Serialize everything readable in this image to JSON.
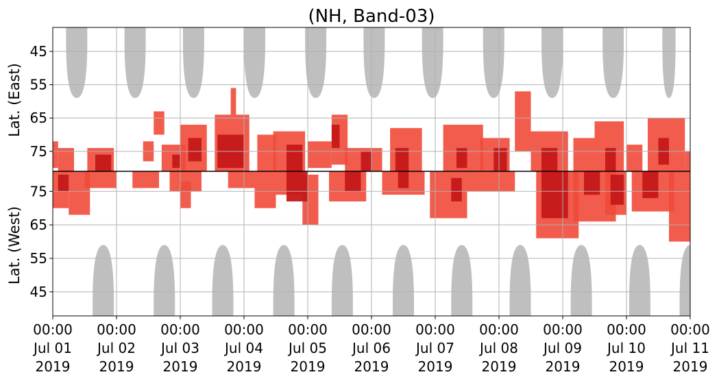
{
  "chart_data": {
    "type": "heatmap",
    "title": "(NH, Band-03)",
    "ylabel_top": "Lat. (East)",
    "ylabel_bottom": "Lat. (West)",
    "y_ticks_east": [
      "45",
      "55",
      "65",
      "75"
    ],
    "y_ticks_west": [
      "75",
      "65",
      "55",
      "45"
    ],
    "x_ticks": [
      {
        "time": "00:00",
        "date": "Jul 01",
        "year": "2019"
      },
      {
        "time": "00:00",
        "date": "Jul 02",
        "year": "2019"
      },
      {
        "time": "00:00",
        "date": "Jul 03",
        "year": "2019"
      },
      {
        "time": "00:00",
        "date": "Jul 04",
        "year": "2019"
      },
      {
        "time": "00:00",
        "date": "Jul 05",
        "year": "2019"
      },
      {
        "time": "00:00",
        "date": "Jul 06",
        "year": "2019"
      },
      {
        "time": "00:00",
        "date": "Jul 07",
        "year": "2019"
      },
      {
        "time": "00:00",
        "date": "Jul 08",
        "year": "2019"
      },
      {
        "time": "00:00",
        "date": "Jul 09",
        "year": "2019"
      },
      {
        "time": "00:00",
        "date": "Jul 10",
        "year": "2019"
      },
      {
        "time": "00:00",
        "date": "Jul 11",
        "year": "2019"
      }
    ],
    "x_range": [
      "2019-07-01 00:00",
      "2019-07-11 00:00"
    ],
    "grid": true,
    "colors": {
      "no_coverage": "#bfbfbf",
      "light": "#f04a3a",
      "dark": "#c41818",
      "divider": "#000000"
    },
    "no_coverage_east": [
      {
        "center": "2019-07-01 09:00",
        "half_width_h": 4.0,
        "min_lat": 59
      },
      {
        "center": "2019-07-02 07:00",
        "half_width_h": 4.0,
        "min_lat": 59
      },
      {
        "center": "2019-07-03 05:00",
        "half_width_h": 4.0,
        "min_lat": 59
      },
      {
        "center": "2019-07-04 04:00",
        "half_width_h": 4.0,
        "min_lat": 59
      },
      {
        "center": "2019-07-05 03:00",
        "half_width_h": 4.0,
        "min_lat": 59
      },
      {
        "center": "2019-07-06 01:00",
        "half_width_h": 4.0,
        "min_lat": 59
      },
      {
        "center": "2019-07-06 23:00",
        "half_width_h": 4.0,
        "min_lat": 59
      },
      {
        "center": "2019-07-07 22:00",
        "half_width_h": 4.0,
        "min_lat": 59
      },
      {
        "center": "2019-07-08 20:00",
        "half_width_h": 4.0,
        "min_lat": 59
      },
      {
        "center": "2019-07-09 19:00",
        "half_width_h": 4.0,
        "min_lat": 59
      },
      {
        "center": "2019-07-10 16:00",
        "half_width_h": 2.5,
        "min_lat": 59
      }
    ],
    "no_coverage_west": [
      {
        "center": "2019-07-01 19:00",
        "half_width_h": 4.0,
        "min_lat": 59
      },
      {
        "center": "2019-07-02 18:00",
        "half_width_h": 4.0,
        "min_lat": 59
      },
      {
        "center": "2019-07-03 16:00",
        "half_width_h": 4.0,
        "min_lat": 59
      },
      {
        "center": "2019-07-04 15:00",
        "half_width_h": 4.0,
        "min_lat": 59
      },
      {
        "center": "2019-07-05 13:00",
        "half_width_h": 4.0,
        "min_lat": 59
      },
      {
        "center": "2019-07-06 12:00",
        "half_width_h": 4.0,
        "min_lat": 59
      },
      {
        "center": "2019-07-07 10:00",
        "half_width_h": 4.0,
        "min_lat": 59
      },
      {
        "center": "2019-07-08 08:00",
        "half_width_h": 4.0,
        "min_lat": 59
      },
      {
        "center": "2019-07-09 07:00",
        "half_width_h": 4.0,
        "min_lat": 59
      },
      {
        "center": "2019-07-10 05:00",
        "half_width_h": 4.0,
        "min_lat": 59
      },
      {
        "center": "2019-07-11 00:00",
        "half_width_h": 4.0,
        "min_lat": 59
      }
    ],
    "activity_east": [
      {
        "t0": "2019-07-01 00:00",
        "t1": "2019-07-01 02:00",
        "lat_min": 72,
        "lat_max": 80,
        "level": "light"
      },
      {
        "t0": "2019-07-01 02:00",
        "t1": "2019-07-01 08:00",
        "lat_min": 74,
        "lat_max": 81,
        "level": "light"
      },
      {
        "t0": "2019-07-01 13:00",
        "t1": "2019-07-01 23:00",
        "lat_min": 74,
        "lat_max": 81,
        "level": "light"
      },
      {
        "t0": "2019-07-01 16:00",
        "t1": "2019-07-01 22:00",
        "lat_min": 76,
        "lat_max": 81,
        "level": "dark"
      },
      {
        "t0": "2019-07-02 10:00",
        "t1": "2019-07-02 14:00",
        "lat_min": 72,
        "lat_max": 78,
        "level": "light"
      },
      {
        "t0": "2019-07-02 14:00",
        "t1": "2019-07-02 18:00",
        "lat_min": 63,
        "lat_max": 70,
        "level": "light"
      },
      {
        "t0": "2019-07-02 17:00",
        "t1": "2019-07-03 02:00",
        "lat_min": 73,
        "lat_max": 81,
        "level": "light"
      },
      {
        "t0": "2019-07-02 21:00",
        "t1": "2019-07-03 00:00",
        "lat_min": 76,
        "lat_max": 80,
        "level": "dark"
      },
      {
        "t0": "2019-07-03 00:00",
        "t1": "2019-07-03 10:00",
        "lat_min": 67,
        "lat_max": 81,
        "level": "light"
      },
      {
        "t0": "2019-07-03 03:00",
        "t1": "2019-07-03 08:00",
        "lat_min": 71,
        "lat_max": 78,
        "level": "dark"
      },
      {
        "t0": "2019-07-03 13:00",
        "t1": "2019-07-04 02:00",
        "lat_min": 64,
        "lat_max": 81,
        "level": "light"
      },
      {
        "t0": "2019-07-03 14:00",
        "t1": "2019-07-04 00:00",
        "lat_min": 70,
        "lat_max": 80,
        "level": "dark"
      },
      {
        "t0": "2019-07-03 19:00",
        "t1": "2019-07-03 21:00",
        "lat_min": 56,
        "lat_max": 64,
        "level": "light"
      },
      {
        "t0": "2019-07-04 05:00",
        "t1": "2019-07-04 12:00",
        "lat_min": 70,
        "lat_max": 81,
        "level": "light"
      },
      {
        "t0": "2019-07-04 11:00",
        "t1": "2019-07-04 23:00",
        "lat_min": 69,
        "lat_max": 81,
        "level": "light"
      },
      {
        "t0": "2019-07-04 16:00",
        "t1": "2019-07-04 22:00",
        "lat_min": 73,
        "lat_max": 81,
        "level": "dark"
      },
      {
        "t0": "2019-07-05 00:00",
        "t1": "2019-07-05 09:00",
        "lat_min": 72,
        "lat_max": 80,
        "level": "light"
      },
      {
        "t0": "2019-07-05 09:00",
        "t1": "2019-07-05 15:00",
        "lat_min": 64,
        "lat_max": 79,
        "level": "light"
      },
      {
        "t0": "2019-07-05 09:00",
        "t1": "2019-07-05 12:00",
        "lat_min": 67,
        "lat_max": 74,
        "level": "dark"
      },
      {
        "t0": "2019-07-05 14:00",
        "t1": "2019-07-06 04:00",
        "lat_min": 74,
        "lat_max": 81,
        "level": "light"
      },
      {
        "t0": "2019-07-05 20:00",
        "t1": "2019-07-06 00:00",
        "lat_min": 75,
        "lat_max": 81,
        "level": "dark"
      },
      {
        "t0": "2019-07-06 07:00",
        "t1": "2019-07-06 19:00",
        "lat_min": 68,
        "lat_max": 81,
        "level": "light"
      },
      {
        "t0": "2019-07-06 09:00",
        "t1": "2019-07-06 14:00",
        "lat_min": 74,
        "lat_max": 81,
        "level": "dark"
      },
      {
        "t0": "2019-07-07 03:00",
        "t1": "2019-07-07 18:00",
        "lat_min": 67,
        "lat_max": 81,
        "level": "light"
      },
      {
        "t0": "2019-07-07 08:00",
        "t1": "2019-07-07 12:00",
        "lat_min": 74,
        "lat_max": 80,
        "level": "dark"
      },
      {
        "t0": "2019-07-07 17:00",
        "t1": "2019-07-08 04:00",
        "lat_min": 71,
        "lat_max": 81,
        "level": "light"
      },
      {
        "t0": "2019-07-07 22:00",
        "t1": "2019-07-08 03:00",
        "lat_min": 74,
        "lat_max": 81,
        "level": "dark"
      },
      {
        "t0": "2019-07-08 06:00",
        "t1": "2019-07-08 12:00",
        "lat_min": 57,
        "lat_max": 75,
        "level": "light"
      },
      {
        "t0": "2019-07-08 12:00",
        "t1": "2019-07-09 02:00",
        "lat_min": 69,
        "lat_max": 81,
        "level": "light"
      },
      {
        "t0": "2019-07-08 16:00",
        "t1": "2019-07-08 22:00",
        "lat_min": 74,
        "lat_max": 81,
        "level": "dark"
      },
      {
        "t0": "2019-07-09 04:00",
        "t1": "2019-07-09 12:00",
        "lat_min": 71,
        "lat_max": 81,
        "level": "light"
      },
      {
        "t0": "2019-07-09 12:00",
        "t1": "2019-07-09 23:00",
        "lat_min": 66,
        "lat_max": 81,
        "level": "light"
      },
      {
        "t0": "2019-07-09 16:00",
        "t1": "2019-07-09 20:00",
        "lat_min": 74,
        "lat_max": 81,
        "level": "dark"
      },
      {
        "t0": "2019-07-10 00:00",
        "t1": "2019-07-10 06:00",
        "lat_min": 73,
        "lat_max": 81,
        "level": "light"
      },
      {
        "t0": "2019-07-10 08:00",
        "t1": "2019-07-10 22:00",
        "lat_min": 65,
        "lat_max": 81,
        "level": "light"
      },
      {
        "t0": "2019-07-10 12:00",
        "t1": "2019-07-10 16:00",
        "lat_min": 71,
        "lat_max": 79,
        "level": "dark"
      },
      {
        "t0": "2019-07-10 22:00",
        "t1": "2019-07-11 00:00",
        "lat_min": 75,
        "lat_max": 81,
        "level": "light"
      }
    ],
    "activity_west": [
      {
        "t0": "2019-07-01 00:00",
        "t1": "2019-07-01 06:00",
        "lat_min": 70,
        "lat_max": 81,
        "level": "light"
      },
      {
        "t0": "2019-07-01 02:00",
        "t1": "2019-07-01 06:00",
        "lat_min": 75,
        "lat_max": 80,
        "level": "dark"
      },
      {
        "t0": "2019-07-01 06:00",
        "t1": "2019-07-01 14:00",
        "lat_min": 68,
        "lat_max": 81,
        "level": "light"
      },
      {
        "t0": "2019-07-01 12:00",
        "t1": "2019-07-02 00:00",
        "lat_min": 76,
        "lat_max": 81,
        "level": "light"
      },
      {
        "t0": "2019-07-02 06:00",
        "t1": "2019-07-02 16:00",
        "lat_min": 76,
        "lat_max": 81,
        "level": "light"
      },
      {
        "t0": "2019-07-02 20:00",
        "t1": "2019-07-03 08:00",
        "lat_min": 75,
        "lat_max": 81,
        "level": "light"
      },
      {
        "t0": "2019-07-03 00:00",
        "t1": "2019-07-03 04:00",
        "lat_min": 70,
        "lat_max": 78,
        "level": "light"
      },
      {
        "t0": "2019-07-03 18:00",
        "t1": "2019-07-04 04:00",
        "lat_min": 76,
        "lat_max": 81,
        "level": "light"
      },
      {
        "t0": "2019-07-04 04:00",
        "t1": "2019-07-04 12:00",
        "lat_min": 70,
        "lat_max": 81,
        "level": "light"
      },
      {
        "t0": "2019-07-04 12:00",
        "t1": "2019-07-04 22:00",
        "lat_min": 74,
        "lat_max": 81,
        "level": "light"
      },
      {
        "t0": "2019-07-04 16:00",
        "t1": "2019-07-05 00:00",
        "lat_min": 72,
        "lat_max": 81,
        "level": "dark"
      },
      {
        "t0": "2019-07-04 22:00",
        "t1": "2019-07-05 04:00",
        "lat_min": 65,
        "lat_max": 80,
        "level": "light"
      },
      {
        "t0": "2019-07-05 08:00",
        "t1": "2019-07-05 22:00",
        "lat_min": 72,
        "lat_max": 81,
        "level": "light"
      },
      {
        "t0": "2019-07-05 14:00",
        "t1": "2019-07-05 20:00",
        "lat_min": 75,
        "lat_max": 81,
        "level": "dark"
      },
      {
        "t0": "2019-07-06 04:00",
        "t1": "2019-07-06 20:00",
        "lat_min": 74,
        "lat_max": 81,
        "level": "light"
      },
      {
        "t0": "2019-07-06 10:00",
        "t1": "2019-07-06 14:00",
        "lat_min": 76,
        "lat_max": 81,
        "level": "dark"
      },
      {
        "t0": "2019-07-06 22:00",
        "t1": "2019-07-07 12:00",
        "lat_min": 67,
        "lat_max": 81,
        "level": "light"
      },
      {
        "t0": "2019-07-07 06:00",
        "t1": "2019-07-07 10:00",
        "lat_min": 72,
        "lat_max": 79,
        "level": "dark"
      },
      {
        "t0": "2019-07-07 12:00",
        "t1": "2019-07-08 06:00",
        "lat_min": 75,
        "lat_max": 81,
        "level": "light"
      },
      {
        "t0": "2019-07-08 14:00",
        "t1": "2019-07-09 06:00",
        "lat_min": 61,
        "lat_max": 81,
        "level": "light"
      },
      {
        "t0": "2019-07-08 16:00",
        "t1": "2019-07-09 02:00",
        "lat_min": 67,
        "lat_max": 81,
        "level": "dark"
      },
      {
        "t0": "2019-07-09 04:00",
        "t1": "2019-07-09 20:00",
        "lat_min": 66,
        "lat_max": 81,
        "level": "light"
      },
      {
        "t0": "2019-07-09 08:00",
        "t1": "2019-07-09 14:00",
        "lat_min": 74,
        "lat_max": 81,
        "level": "dark"
      },
      {
        "t0": "2019-07-09 16:00",
        "t1": "2019-07-10 00:00",
        "lat_min": 68,
        "lat_max": 81,
        "level": "light"
      },
      {
        "t0": "2019-07-09 18:00",
        "t1": "2019-07-09 23:00",
        "lat_min": 71,
        "lat_max": 80,
        "level": "dark"
      },
      {
        "t0": "2019-07-10 02:00",
        "t1": "2019-07-10 18:00",
        "lat_min": 69,
        "lat_max": 81,
        "level": "light"
      },
      {
        "t0": "2019-07-10 06:00",
        "t1": "2019-07-10 12:00",
        "lat_min": 73,
        "lat_max": 81,
        "level": "dark"
      },
      {
        "t0": "2019-07-10 16:00",
        "t1": "2019-07-11 00:00",
        "lat_min": 60,
        "lat_max": 81,
        "level": "light"
      }
    ]
  }
}
